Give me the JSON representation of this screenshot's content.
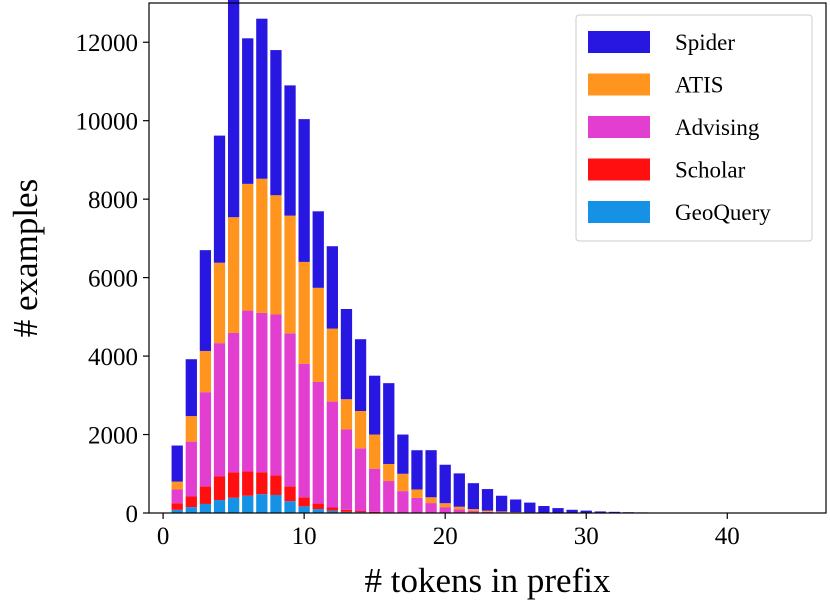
{
  "chart_data": {
    "type": "bar",
    "stacked": true,
    "xlabel": "# tokens in prefix",
    "ylabel": "# examples",
    "xlim": [
      -1,
      47
    ],
    "ylim": [
      0,
      13000
    ],
    "xticks": [
      0,
      10,
      20,
      30,
      40
    ],
    "yticks": [
      0,
      2000,
      4000,
      6000,
      8000,
      10000,
      12000
    ],
    "legend_position": "top-right",
    "grid": false,
    "x": [
      1,
      2,
      3,
      4,
      5,
      6,
      7,
      8,
      9,
      10,
      11,
      12,
      13,
      14,
      15,
      16,
      17,
      18,
      19,
      20,
      21,
      22,
      23,
      24,
      25,
      26,
      27,
      28,
      29,
      30,
      31,
      32,
      33,
      34,
      35,
      36,
      37,
      38,
      39,
      40,
      41,
      42,
      43,
      44,
      45
    ],
    "series": [
      {
        "name": "GeoQuery",
        "color": "#1592e6",
        "values": [
          80,
          150,
          230,
          330,
          390,
          440,
          480,
          460,
          300,
          170,
          100,
          60,
          30,
          20,
          10,
          5,
          3,
          2,
          1,
          0,
          0,
          0,
          0,
          0,
          0,
          0,
          0,
          0,
          0,
          0,
          0,
          0,
          0,
          0,
          0,
          0,
          0,
          0,
          0,
          0,
          0,
          0,
          0,
          0,
          0
        ]
      },
      {
        "name": "Scholar",
        "color": "#ff0f0f",
        "values": [
          170,
          270,
          450,
          600,
          650,
          620,
          560,
          500,
          380,
          230,
          140,
          80,
          50,
          30,
          20,
          10,
          5,
          3,
          2,
          0,
          0,
          0,
          0,
          0,
          0,
          0,
          0,
          0,
          0,
          0,
          0,
          0,
          0,
          0,
          0,
          0,
          0,
          0,
          0,
          0,
          0,
          0,
          0,
          0,
          0
        ]
      },
      {
        "name": "Advising",
        "color": "#e23fd0",
        "values": [
          350,
          1400,
          2400,
          3400,
          3550,
          4100,
          4060,
          4100,
          3900,
          3400,
          3100,
          2700,
          2050,
          1600,
          1100,
          800,
          550,
          380,
          250,
          150,
          90,
          50,
          30,
          20,
          10,
          5,
          3,
          2,
          0,
          0,
          0,
          0,
          0,
          0,
          0,
          0,
          0,
          0,
          0,
          0,
          0,
          0,
          0,
          0,
          0
        ]
      },
      {
        "name": "ATIS",
        "color": "#ff951f",
        "values": [
          200,
          650,
          1050,
          2050,
          2950,
          3230,
          3420,
          3040,
          3000,
          2600,
          2400,
          1860,
          770,
          950,
          870,
          435,
          442,
          215,
          148,
          100,
          70,
          50,
          30,
          20,
          15,
          10,
          5,
          3,
          2,
          1,
          0,
          0,
          0,
          0,
          0,
          0,
          0,
          0,
          0,
          0,
          0,
          0,
          0,
          0,
          0
        ]
      },
      {
        "name": "Spider",
        "color": "#2817e0",
        "values": [
          920,
          1450,
          2570,
          3240,
          5630,
          3710,
          4080,
          3700,
          3320,
          3640,
          1950,
          2100,
          2300,
          1830,
          1500,
          2060,
          1000,
          1000,
          1200,
          980,
          850,
          660,
          550,
          400,
          320,
          250,
          170,
          120,
          80,
          60,
          40,
          30,
          20,
          15,
          10,
          5,
          4,
          3,
          2,
          2,
          1,
          1,
          1,
          1,
          1
        ]
      }
    ]
  }
}
